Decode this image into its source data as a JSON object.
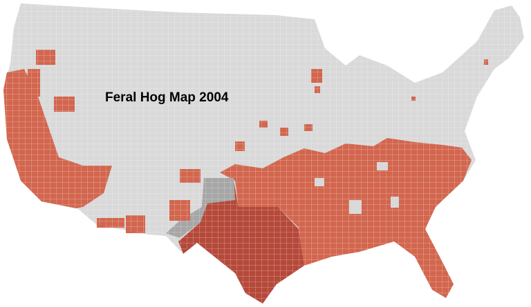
{
  "title": "Feral Hog Map 2004"
}
